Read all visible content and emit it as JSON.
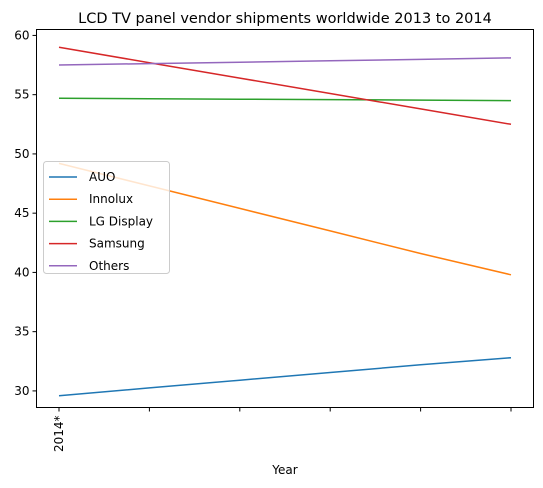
{
  "chart_data": {
    "type": "line",
    "title": "LCD TV panel vendor shipments worldwide 2013 to 2014",
    "xlabel": "Year",
    "ylabel": "",
    "categories": [
      "2014*",
      "",
      "",
      "",
      "",
      ""
    ],
    "ylim": [
      28.6,
      60.5
    ],
    "yticks": [
      30,
      35,
      40,
      45,
      50,
      55,
      60
    ],
    "grid": false,
    "legend_position": "center-left",
    "series": [
      {
        "name": "AUO",
        "color": "#1f77b4",
        "values": [
          29.6,
          30.25,
          30.9,
          31.55,
          32.2,
          32.8
        ]
      },
      {
        "name": "Innolux",
        "color": "#ff7f0e",
        "values": [
          49.2,
          47.3,
          45.4,
          43.5,
          41.6,
          39.8
        ]
      },
      {
        "name": "LG Display",
        "color": "#2ca02c",
        "values": [
          54.7,
          54.66,
          54.62,
          54.58,
          54.54,
          54.5
        ]
      },
      {
        "name": "Samsung",
        "color": "#d62728",
        "values": [
          59.0,
          57.7,
          56.4,
          55.1,
          53.8,
          52.5
        ]
      },
      {
        "name": "Others",
        "color": "#9467bd",
        "values": [
          57.5,
          57.62,
          57.74,
          57.86,
          57.98,
          58.1
        ]
      }
    ]
  }
}
